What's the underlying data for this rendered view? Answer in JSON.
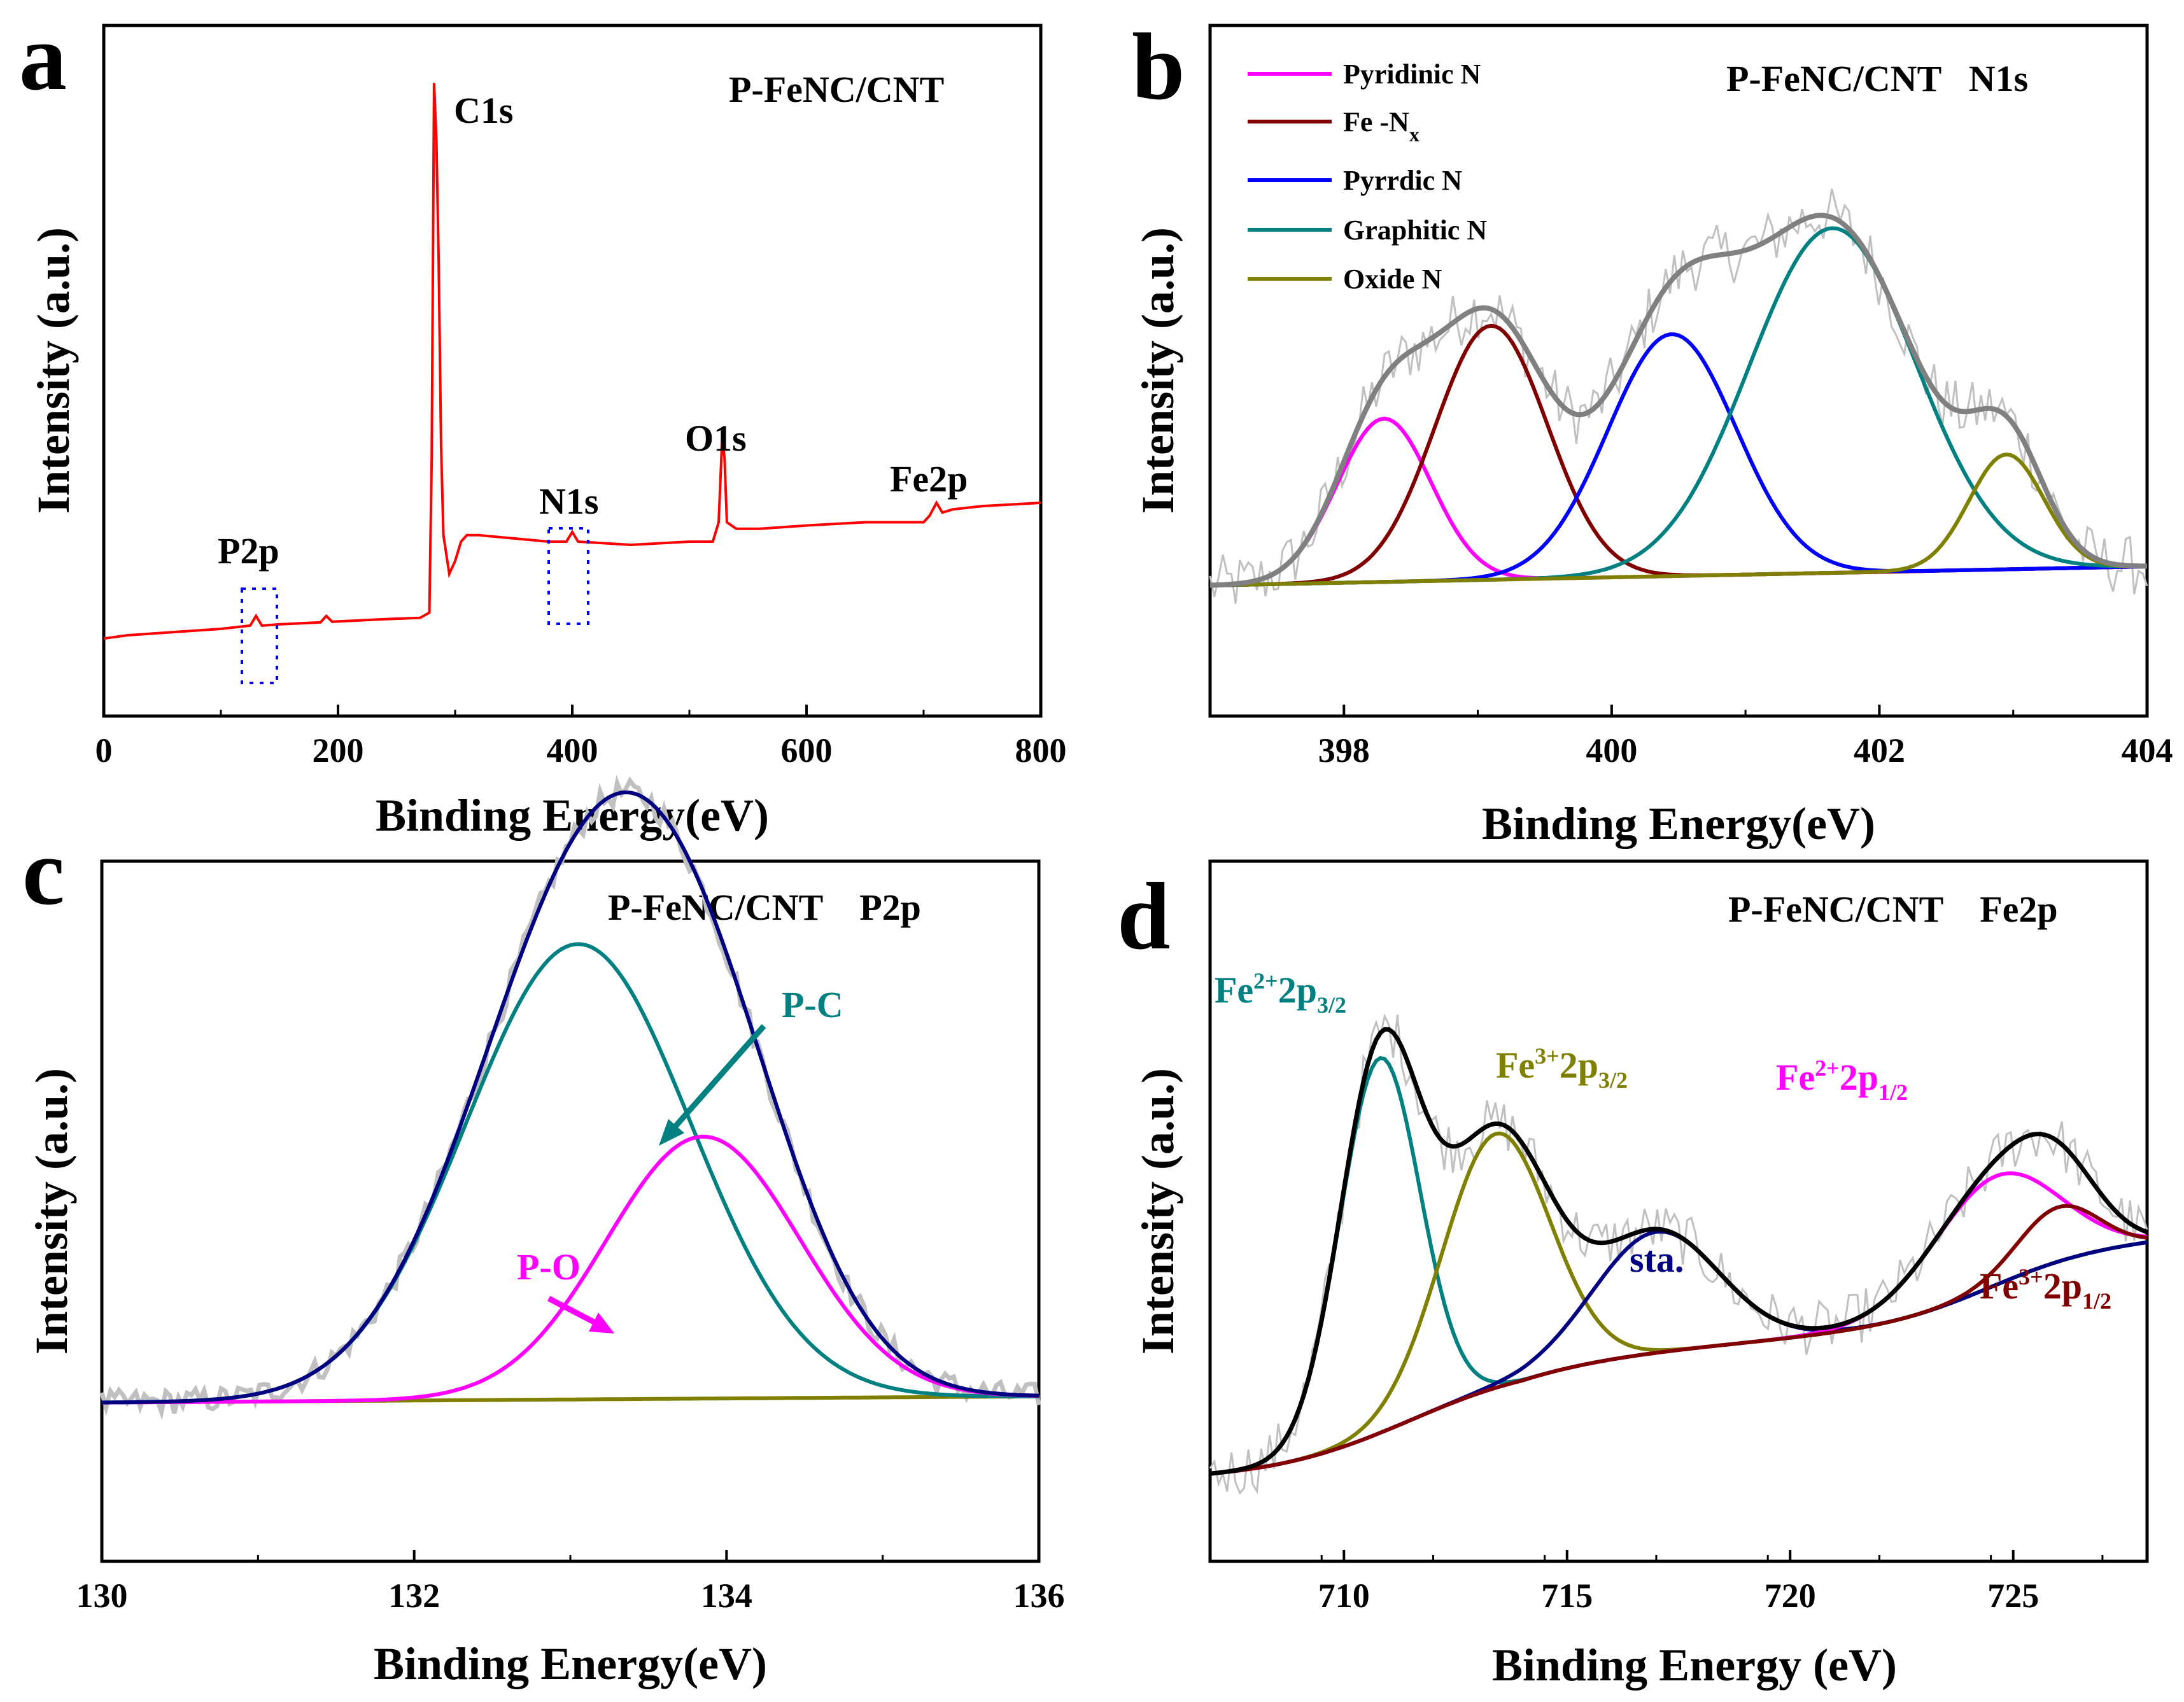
{
  "colors": {
    "survey": "#ff0000",
    "raw": "#c0c0c0",
    "envelope": "#808080",
    "pyridinic": "#ff00ff",
    "fenx": "#800000",
    "pyrrolic": "#0000ff",
    "graphitic": "#008080",
    "oxide": "#808000",
    "baseline_n": "#ff1493",
    "p2p_envelope": "#000080",
    "p2p_pc": "#008080",
    "p2p_po": "#ff00ff",
    "p2p_baseline": "#808000",
    "fe_envelope": "#000000",
    "fe2_32": "#008080",
    "fe3_32": "#808000",
    "fe2_12": "#ff00ff",
    "fe3_12": "#800000",
    "fe_sat": "#000080",
    "fe_baseline": "#8b4513",
    "box": "#0000ff"
  },
  "chart_data": [
    {
      "id": "a",
      "panel_letter": "a",
      "type": "line",
      "title": "P-FeNC/CNT",
      "xlabel": "Binding Energy(eV)",
      "ylabel": "Intensity (a.u.)",
      "xlim": [
        0,
        800
      ],
      "ylim": [
        0,
        100
      ],
      "xticks": [
        "0",
        "200",
        "400",
        "600",
        "800"
      ],
      "xtick_values": [
        0,
        200,
        400,
        600,
        800
      ],
      "peak_labels": [
        {
          "text": "C1s",
          "x": 284
        },
        {
          "text": "N1s",
          "x": 400
        },
        {
          "text": "O1s",
          "x": 532
        },
        {
          "text": "P2p",
          "x": 133
        },
        {
          "text": "Fe2p",
          "x": 711
        }
      ],
      "series": [
        {
          "name": "survey",
          "color_key": "survey",
          "points": [
            [
              0,
              12
            ],
            [
              20,
              12.5
            ],
            [
              60,
              13
            ],
            [
              100,
              13.5
            ],
            [
              125,
              14
            ],
            [
              130,
              15.5
            ],
            [
              135,
              14
            ],
            [
              150,
              14.2
            ],
            [
              185,
              14.5
            ],
            [
              190,
              15.5
            ],
            [
              195,
              14.6
            ],
            [
              240,
              15
            ],
            [
              270,
              15.2
            ],
            [
              278,
              16
            ],
            [
              280,
              40
            ],
            [
              282,
              98
            ],
            [
              284,
              89
            ],
            [
              286,
              70
            ],
            [
              288,
              42
            ],
            [
              290,
              28
            ],
            [
              295,
              22
            ],
            [
              300,
              24
            ],
            [
              305,
              27
            ],
            [
              310,
              28
            ],
            [
              320,
              28
            ],
            [
              350,
              27.5
            ],
            [
              380,
              27
            ],
            [
              395,
              27
            ],
            [
              400,
              28.5
            ],
            [
              405,
              27
            ],
            [
              450,
              26.5
            ],
            [
              500,
              27
            ],
            [
              520,
              27
            ],
            [
              525,
              30
            ],
            [
              528,
              43
            ],
            [
              530,
              40
            ],
            [
              532,
              30
            ],
            [
              540,
              29
            ],
            [
              560,
              29
            ],
            [
              600,
              29.5
            ],
            [
              650,
              30
            ],
            [
              700,
              30
            ],
            [
              705,
              31
            ],
            [
              711,
              33
            ],
            [
              716,
              31.5
            ],
            [
              725,
              32
            ],
            [
              750,
              32.5
            ],
            [
              800,
              33
            ]
          ]
        }
      ]
    },
    {
      "id": "b",
      "panel_letter": "b",
      "type": "line",
      "title": "P-FeNC/CNT   N1s",
      "xlabel": "Binding Energy(eV)",
      "ylabel": "Intensity (a.u.)",
      "xlim": [
        397.0,
        404.0
      ],
      "ylim": [
        0,
        100
      ],
      "xticks": [
        "398",
        "400",
        "402",
        "404"
      ],
      "xtick_values": [
        398,
        400,
        402,
        404
      ],
      "legend": [
        {
          "label": "Pyridinic N",
          "color_key": "pyridinic"
        },
        {
          "label": "Fe -N",
          "subscript": "x",
          "color_key": "fenx"
        },
        {
          "label": "Pyrrdic N",
          "color_key": "pyrrolic"
        },
        {
          "label": "Graphitic N",
          "color_key": "graphitic"
        },
        {
          "label": "Oxide N",
          "color_key": "oxide"
        }
      ],
      "baseline": [
        [
          397.3,
          17
        ],
        [
          404.0,
          20
        ]
      ],
      "components": [
        {
          "name": "Pyridinic N",
          "center": 398.3,
          "height": 27,
          "sigma": 0.35,
          "color_key": "pyridinic"
        },
        {
          "name": "Fe -Nx",
          "center": 399.1,
          "height": 42,
          "sigma": 0.42,
          "color_key": "fenx"
        },
        {
          "name": "Pyrrdic N",
          "center": 400.45,
          "height": 40,
          "sigma": 0.48,
          "color_key": "pyrrolic"
        },
        {
          "name": "Graphitic N",
          "center": 401.65,
          "height": 57,
          "sigma": 0.62,
          "color_key": "graphitic"
        },
        {
          "name": "Oxide N",
          "center": 402.95,
          "height": 19,
          "sigma": 0.28,
          "color_key": "oxide"
        }
      ],
      "envelope_color_key": "envelope",
      "raw_color_key": "raw",
      "baseline_color_key": "baseline_n"
    },
    {
      "id": "c",
      "panel_letter": "c",
      "type": "line",
      "title": "P-FeNC/CNT    P2p",
      "xlabel": "Binding Energy(eV)",
      "ylabel": "Intensity (a.u.)",
      "xlim": [
        130,
        136
      ],
      "ylim": [
        0,
        100
      ],
      "xticks": [
        "130",
        "132",
        "134",
        "136"
      ],
      "xtick_values": [
        130,
        132,
        134,
        136
      ],
      "annotations": [
        {
          "text": "P-C",
          "color_key": "p2p_pc"
        },
        {
          "text": "P-O",
          "color_key": "p2p_po"
        }
      ],
      "baseline": [
        [
          130,
          18
        ],
        [
          136,
          19
        ]
      ],
      "components": [
        {
          "name": "P-C",
          "center": 133.05,
          "height": 73,
          "sigma": 0.72,
          "color_key": "p2p_pc"
        },
        {
          "name": "P-O",
          "center": 133.85,
          "height": 42,
          "sigma": 0.62,
          "color_key": "p2p_po"
        }
      ],
      "envelope_color_key": "p2p_envelope",
      "raw_color_key": "raw",
      "baseline_color_key": "p2p_baseline"
    },
    {
      "id": "d",
      "panel_letter": "d",
      "type": "line",
      "title": "P-FeNC/CNT    Fe2p",
      "xlabel": "Binding Energy (eV)",
      "ylabel": "Intensity (a.u.)",
      "xlim": [
        707,
        728
      ],
      "ylim": [
        0,
        100
      ],
      "xticks": [
        "710",
        "715",
        "720",
        "725"
      ],
      "xtick_values": [
        710,
        715,
        720,
        725
      ],
      "annotations": [
        {
          "id": "fe2_32",
          "base": "Fe",
          "sup": "2+",
          "mid": "2p",
          "sub": "3/2",
          "color_key": "fe2_32"
        },
        {
          "id": "fe3_32",
          "base": "Fe",
          "sup": "3+",
          "mid": "2p",
          "sub": "3/2",
          "color_key": "fe3_32"
        },
        {
          "id": "fe2_12",
          "base": "Fe",
          "sup": "2+",
          "mid": "2p",
          "sub": "1/2",
          "color_key": "fe2_12"
        },
        {
          "id": "fe3_12",
          "base": "Fe",
          "sup": "3+",
          "mid": "2p",
          "sub": "1/2",
          "color_key": "fe3_12"
        },
        {
          "id": "sat",
          "text": "sta.",
          "color_key": "fe_sat"
        }
      ],
      "components": [
        {
          "name": "Fe2+ 2p3/2",
          "center": 710.8,
          "height": 62,
          "sigma": 0.9,
          "color_key": "fe2_32"
        },
        {
          "name": "Fe3+ 2p3/2",
          "center": 713.4,
          "height": 42,
          "sigma": 1.2,
          "color_key": "fe3_32"
        },
        {
          "name": "sta.",
          "center": 717.0,
          "height": 20,
          "sigma": 1.4,
          "color_key": "fe_sat"
        },
        {
          "name": "Fe2+ 2p1/2",
          "center": 724.6,
          "height": 18,
          "sigma": 1.4,
          "color_key": "fe2_12"
        },
        {
          "name": "Fe3+ 2p1/2",
          "center": 726.0,
          "height": 9,
          "sigma": 0.9,
          "color_key": "fe3_12"
        }
      ],
      "envelope_color_key": "fe_envelope",
      "raw_color_key": "raw",
      "baseline_color_key": "fe_baseline"
    }
  ]
}
